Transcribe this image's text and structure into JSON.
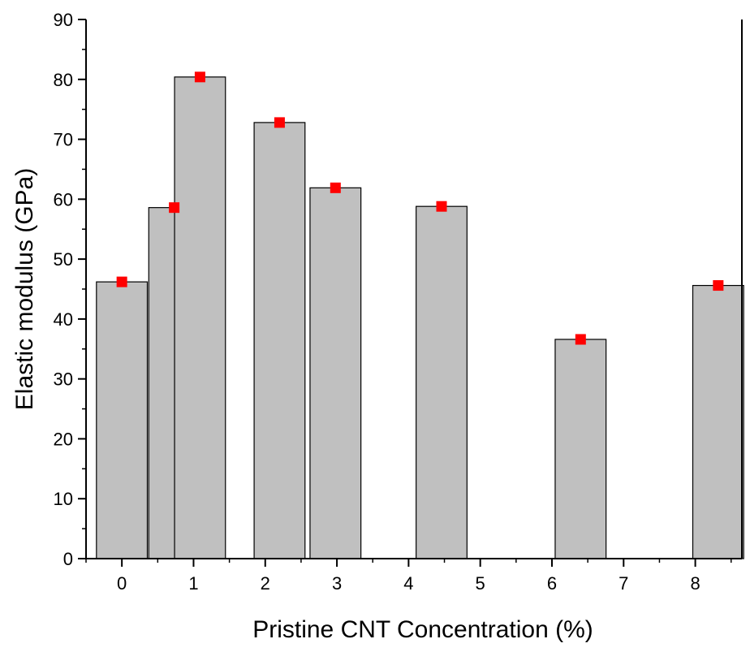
{
  "chart_data": {
    "type": "bar",
    "title": "",
    "xlabel": "Pristine CNT Concentration (%)",
    "ylabel": "Elastic modulus (GPa)",
    "xlim": [
      -0.5,
      8.65
    ],
    "ylim": [
      0,
      90
    ],
    "x_ticks": [
      {
        "value": 0,
        "label": "0"
      },
      {
        "value": 1,
        "label": "1"
      },
      {
        "value": 2,
        "label": "2"
      },
      {
        "value": 3,
        "label": "3"
      },
      {
        "value": 4,
        "label": "4"
      },
      {
        "value": 5,
        "label": "5"
      },
      {
        "value": 6,
        "label": "6"
      },
      {
        "value": 7,
        "label": "7"
      },
      {
        "value": 8,
        "label": "8"
      }
    ],
    "y_ticks": [
      {
        "value": 0,
        "label": "0"
      },
      {
        "value": 10,
        "label": "10"
      },
      {
        "value": 20,
        "label": "20"
      },
      {
        "value": 30,
        "label": "30"
      },
      {
        "value": 40,
        "label": "40"
      },
      {
        "value": 50,
        "label": "50"
      },
      {
        "value": 60,
        "label": "60"
      },
      {
        "value": 70,
        "label": "70"
      },
      {
        "value": 80,
        "label": "80"
      },
      {
        "value": 90,
        "label": "90"
      }
    ],
    "bar_width": 0.71,
    "points": [
      {
        "x": 0.0,
        "y": 46.2
      },
      {
        "x": 0.73,
        "y": 58.6
      },
      {
        "x": 1.09,
        "y": 80.4
      },
      {
        "x": 2.2,
        "y": 72.8
      },
      {
        "x": 2.98,
        "y": 61.9
      },
      {
        "x": 4.46,
        "y": 58.8
      },
      {
        "x": 6.4,
        "y": 36.6
      },
      {
        "x": 8.32,
        "y": 45.6
      }
    ],
    "grid": false,
    "legend": "none",
    "colors": {
      "bar_fill": "#c0c0c0",
      "bar_stroke": "#000000",
      "marker": "#ff0000"
    }
  }
}
